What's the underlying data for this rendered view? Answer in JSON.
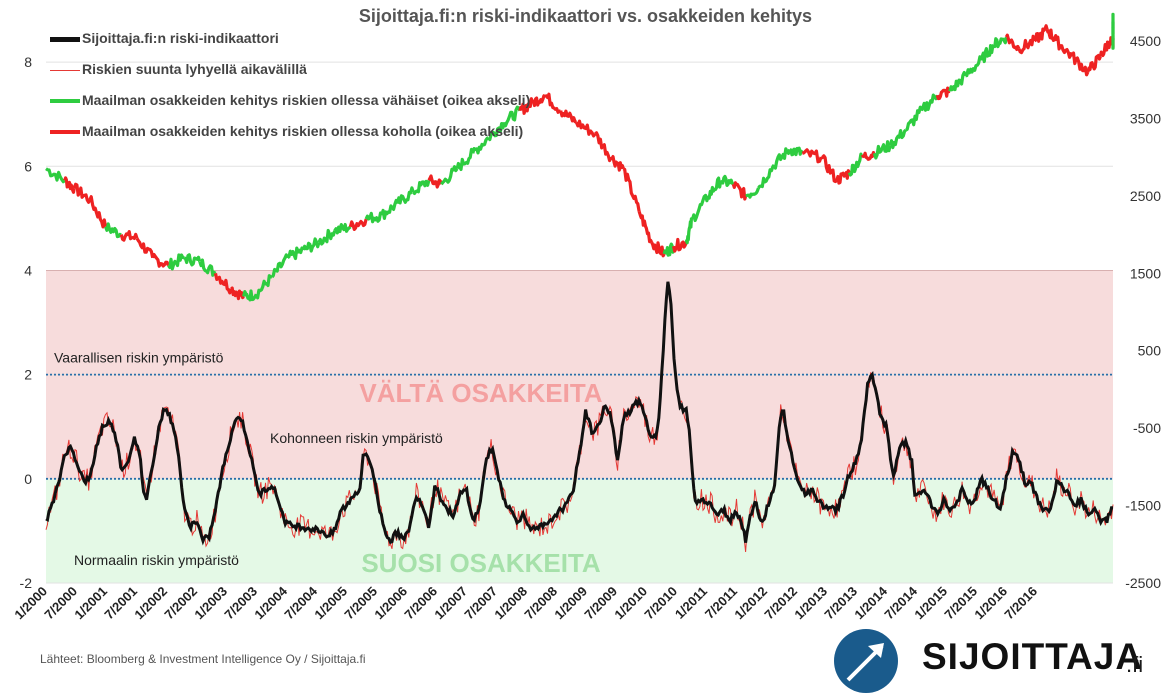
{
  "chart_data": {
    "type": "line",
    "title": "Sijoittaja.fi:n riski-indikaattori vs. osakkeiden kehitys",
    "left_axis": {
      "range": [
        -2,
        9
      ],
      "ticks": [
        -2,
        0,
        2,
        4,
        6,
        8
      ]
    },
    "right_axis": {
      "range": [
        -2500,
        4900
      ],
      "ticks": [
        -2500,
        -1500,
        -500,
        500,
        1500,
        2500,
        3500,
        4500
      ]
    },
    "x_range": [
      2000.0,
      2017.0
    ],
    "x_ticks": [
      "1/2000",
      "7/2000",
      "1/2001",
      "7/2001",
      "1/2002",
      "7/2002",
      "1/2003",
      "7/2003",
      "1/2004",
      "7/2004",
      "1/2005",
      "7/2005",
      "1/2006",
      "7/2006",
      "1/2007",
      "7/2007",
      "1/2008",
      "7/2008",
      "1/2009",
      "7/2009",
      "1/2010",
      "7/2010",
      "1/2011",
      "7/2011",
      "1/2012",
      "7/2012",
      "1/2013",
      "7/2013",
      "1/2014",
      "7/2014",
      "1/2015",
      "7/2015",
      "1/2016",
      "7/2016"
    ],
    "zones": [
      {
        "label": "VÄLTÄ OSAKKEITA",
        "from": 0,
        "to": 4,
        "color": "#f7dcdc",
        "text_color": "#f4a0a0"
      },
      {
        "label": "SUOSI OSAKKEITA",
        "from": -2,
        "to": 0,
        "color": "#e4f9e6",
        "text_color": "#a6e1aa"
      }
    ],
    "reference_lines": [
      {
        "y": 2,
        "label": "Vaarallisen riskin ympäristö"
      },
      {
        "y": 0,
        "label": "Kohonneen riskin ympäristö"
      }
    ],
    "zone_annotations": [
      "Normaalin riskin ympäristö"
    ],
    "series": [
      {
        "name": "Sijoittaja.fi:n riski-indikaattori",
        "axis": "left",
        "color": "#111111",
        "points": [
          [
            2000.0,
            -0.8
          ],
          [
            2000.1,
            -0.5
          ],
          [
            2000.2,
            -0.1
          ],
          [
            2000.3,
            0.5
          ],
          [
            2000.4,
            0.6
          ],
          [
            2000.5,
            0.3
          ],
          [
            2000.6,
            -0.05
          ],
          [
            2000.7,
            0.0
          ],
          [
            2000.8,
            0.6
          ],
          [
            2000.9,
            1.0
          ],
          [
            2001.0,
            1.1
          ],
          [
            2001.1,
            0.9
          ],
          [
            2001.2,
            0.2
          ],
          [
            2001.3,
            0.3
          ],
          [
            2001.4,
            0.8
          ],
          [
            2001.5,
            0.4
          ],
          [
            2001.55,
            -0.2
          ],
          [
            2001.6,
            -0.4
          ],
          [
            2001.7,
            0.3
          ],
          [
            2001.8,
            1.0
          ],
          [
            2001.9,
            1.4
          ],
          [
            2002.0,
            1.1
          ],
          [
            2002.1,
            0.6
          ],
          [
            2002.15,
            0.0
          ],
          [
            2002.2,
            -0.6
          ],
          [
            2002.3,
            -0.9
          ],
          [
            2002.4,
            -0.8
          ],
          [
            2002.5,
            -1.2
          ],
          [
            2002.6,
            -1.1
          ],
          [
            2002.7,
            -0.6
          ],
          [
            2002.8,
            0.1
          ],
          [
            2002.9,
            0.6
          ],
          [
            2003.0,
            1.1
          ],
          [
            2003.1,
            1.2
          ],
          [
            2003.2,
            0.8
          ],
          [
            2003.3,
            0.2
          ],
          [
            2003.4,
            -0.3
          ],
          [
            2003.5,
            -0.2
          ],
          [
            2003.6,
            -0.1
          ],
          [
            2003.7,
            -0.4
          ],
          [
            2003.8,
            -0.8
          ],
          [
            2003.9,
            -0.9
          ],
          [
            2004.0,
            -0.9
          ],
          [
            2004.2,
            -0.95
          ],
          [
            2004.4,
            -1.0
          ],
          [
            2004.5,
            -1.1
          ],
          [
            2004.6,
            -1.0
          ],
          [
            2004.7,
            -0.6
          ],
          [
            2004.8,
            -0.5
          ],
          [
            2004.9,
            -0.3
          ],
          [
            2005.0,
            -0.2
          ],
          [
            2005.05,
            0.4
          ],
          [
            2005.1,
            0.5
          ],
          [
            2005.2,
            0.2
          ],
          [
            2005.3,
            -0.5
          ],
          [
            2005.4,
            -1.0
          ],
          [
            2005.5,
            -1.2
          ],
          [
            2005.6,
            -1.0
          ],
          [
            2005.7,
            -1.2
          ],
          [
            2005.8,
            -0.9
          ],
          [
            2005.9,
            -0.3
          ],
          [
            2006.0,
            -0.5
          ],
          [
            2006.1,
            -0.9
          ],
          [
            2006.2,
            -0.1
          ],
          [
            2006.3,
            -0.4
          ],
          [
            2006.4,
            -0.6
          ],
          [
            2006.5,
            -0.7
          ],
          [
            2006.6,
            -0.3
          ],
          [
            2006.7,
            -0.2
          ],
          [
            2006.8,
            -0.8
          ],
          [
            2006.9,
            -0.6
          ],
          [
            2007.0,
            0.3
          ],
          [
            2007.1,
            0.6
          ],
          [
            2007.2,
            0.1
          ],
          [
            2007.3,
            -0.4
          ],
          [
            2007.4,
            -0.6
          ],
          [
            2007.5,
            -0.8
          ],
          [
            2007.6,
            -0.7
          ],
          [
            2007.7,
            -0.9
          ],
          [
            2007.8,
            -1.0
          ],
          [
            2007.9,
            -0.9
          ],
          [
            2008.0,
            -0.9
          ],
          [
            2008.1,
            -0.7
          ],
          [
            2008.2,
            -0.6
          ],
          [
            2008.3,
            -0.5
          ],
          [
            2008.4,
            -0.2
          ],
          [
            2008.5,
            0.5
          ],
          [
            2008.6,
            1.3
          ],
          [
            2008.7,
            0.9
          ],
          [
            2008.8,
            1.0
          ],
          [
            2008.9,
            1.4
          ],
          [
            2009.0,
            1.2
          ],
          [
            2009.05,
            0.8
          ],
          [
            2009.1,
            0.3
          ],
          [
            2009.2,
            1.2
          ],
          [
            2009.3,
            1.3
          ],
          [
            2009.4,
            1.5
          ],
          [
            2009.5,
            1.4
          ],
          [
            2009.6,
            0.9
          ],
          [
            2009.7,
            0.8
          ],
          [
            2009.75,
            1.0
          ],
          [
            2009.8,
            1.8
          ],
          [
            2009.85,
            2.8
          ],
          [
            2009.9,
            3.8
          ],
          [
            2009.95,
            3.5
          ],
          [
            2010.0,
            2.4
          ],
          [
            2010.05,
            1.7
          ],
          [
            2010.1,
            1.4
          ],
          [
            2010.2,
            1.3
          ],
          [
            2010.25,
            0.9
          ],
          [
            2010.3,
            0.1
          ],
          [
            2010.35,
            -0.5
          ],
          [
            2010.4,
            -0.4
          ],
          [
            2010.5,
            -0.4
          ],
          [
            2010.6,
            -0.5
          ],
          [
            2010.7,
            -0.7
          ],
          [
            2010.8,
            -0.6
          ],
          [
            2010.9,
            -0.8
          ],
          [
            2011.0,
            -0.6
          ],
          [
            2011.1,
            -0.9
          ],
          [
            2011.15,
            -1.2
          ],
          [
            2011.2,
            -0.8
          ],
          [
            2011.3,
            -0.4
          ],
          [
            2011.4,
            -0.9
          ],
          [
            2011.5,
            -0.5
          ],
          [
            2011.6,
            -0.2
          ],
          [
            2011.65,
            0.5
          ],
          [
            2011.7,
            1.2
          ],
          [
            2011.75,
            1.3
          ],
          [
            2011.8,
            0.9
          ],
          [
            2011.9,
            0.3
          ],
          [
            2012.0,
            -0.1
          ],
          [
            2012.1,
            -0.3
          ],
          [
            2012.2,
            -0.2
          ],
          [
            2012.3,
            -0.4
          ],
          [
            2012.4,
            -0.6
          ],
          [
            2012.5,
            -0.5
          ],
          [
            2012.6,
            -0.6
          ],
          [
            2012.7,
            -0.3
          ],
          [
            2012.8,
            0.1
          ],
          [
            2012.9,
            0.3
          ],
          [
            2013.0,
            0.8
          ],
          [
            2013.05,
            1.4
          ],
          [
            2013.1,
            1.9
          ],
          [
            2013.15,
            2.0
          ],
          [
            2013.2,
            1.8
          ],
          [
            2013.3,
            1.2
          ],
          [
            2013.4,
            1.0
          ],
          [
            2013.45,
            0.4
          ],
          [
            2013.5,
            0.0
          ],
          [
            2013.6,
            0.6
          ],
          [
            2013.7,
            0.7
          ],
          [
            2013.8,
            0.3
          ],
          [
            2013.85,
            -0.4
          ],
          [
            2013.9,
            -0.3
          ],
          [
            2014.0,
            -0.2
          ],
          [
            2014.1,
            -0.5
          ],
          [
            2014.2,
            -0.7
          ],
          [
            2014.3,
            -0.4
          ],
          [
            2014.4,
            -0.6
          ],
          [
            2014.5,
            -0.5
          ],
          [
            2014.6,
            -0.2
          ],
          [
            2014.7,
            -0.5
          ],
          [
            2014.8,
            -0.4
          ],
          [
            2014.9,
            0.0
          ],
          [
            2015.0,
            -0.2
          ],
          [
            2015.1,
            -0.4
          ],
          [
            2015.2,
            -0.6
          ],
          [
            2015.3,
            0.0
          ],
          [
            2015.4,
            0.5
          ],
          [
            2015.5,
            0.4
          ],
          [
            2015.6,
            -0.1
          ],
          [
            2015.7,
            -0.1
          ],
          [
            2015.8,
            -0.4
          ],
          [
            2015.9,
            -0.6
          ],
          [
            2016.0,
            -0.6
          ],
          [
            2016.05,
            -0.4
          ],
          [
            2016.1,
            0.0
          ],
          [
            2016.2,
            -0.2
          ],
          [
            2016.3,
            -0.3
          ],
          [
            2016.4,
            -0.5
          ],
          [
            2016.5,
            -0.4
          ],
          [
            2016.6,
            -0.7
          ],
          [
            2016.7,
            -0.6
          ],
          [
            2016.8,
            -0.8
          ],
          [
            2016.9,
            -0.8
          ],
          [
            2017.0,
            -0.5
          ]
        ]
      },
      {
        "name": "Riskien suunta lyhyellä aikavälillä",
        "axis": "left",
        "color": "#e53935",
        "derived_from_indicator": true
      },
      {
        "name": "Maailman osakkeiden kehitys riskien ollessa vähäiset (oikea akseli)",
        "axis": "right",
        "color": "#2ecc40"
      },
      {
        "name": "Maailman osakkeiden kehitys riskien ollessa koholla (oikea akseli)",
        "axis": "right",
        "color": "#ee2222"
      }
    ],
    "equity_index": {
      "axis": "right",
      "points": [
        [
          2000.0,
          2850,
          "g"
        ],
        [
          2000.3,
          2700,
          "g"
        ],
        [
          2000.45,
          2600,
          "r"
        ],
        [
          2000.7,
          2450,
          "r"
        ],
        [
          2000.95,
          2100,
          "r"
        ],
        [
          2001.2,
          2000,
          "g"
        ],
        [
          2001.45,
          1950,
          "r"
        ],
        [
          2001.7,
          1700,
          "r"
        ],
        [
          2001.95,
          1600,
          "r"
        ],
        [
          2002.2,
          1700,
          "g"
        ],
        [
          2002.45,
          1650,
          "g"
        ],
        [
          2002.7,
          1500,
          "g"
        ],
        [
          2002.95,
          1300,
          "r"
        ],
        [
          2003.15,
          1200,
          "r"
        ],
        [
          2003.35,
          1230,
          "g"
        ],
        [
          2003.6,
          1450,
          "g"
        ],
        [
          2003.85,
          1700,
          "g"
        ],
        [
          2004.1,
          1800,
          "g"
        ],
        [
          2004.35,
          1900,
          "g"
        ],
        [
          2004.6,
          2050,
          "g"
        ],
        [
          2004.85,
          2100,
          "g"
        ],
        [
          2005.1,
          2200,
          "r"
        ],
        [
          2005.35,
          2250,
          "g"
        ],
        [
          2005.6,
          2400,
          "g"
        ],
        [
          2005.85,
          2550,
          "g"
        ],
        [
          2006.1,
          2700,
          "g"
        ],
        [
          2006.3,
          2650,
          "r"
        ],
        [
          2006.55,
          2850,
          "g"
        ],
        [
          2006.8,
          3050,
          "g"
        ],
        [
          2007.05,
          3250,
          "g"
        ],
        [
          2007.3,
          3450,
          "g"
        ],
        [
          2007.55,
          3600,
          "g"
        ],
        [
          2007.75,
          3700,
          "r"
        ],
        [
          2007.95,
          3800,
          "r"
        ],
        [
          2008.2,
          3600,
          "r"
        ],
        [
          2008.45,
          3450,
          "r"
        ],
        [
          2008.75,
          3300,
          "r"
        ],
        [
          2009.0,
          3000,
          "r"
        ],
        [
          2009.2,
          2850,
          "r"
        ],
        [
          2009.45,
          2300,
          "r"
        ],
        [
          2009.65,
          1900,
          "r"
        ],
        [
          2009.85,
          1750,
          "r"
        ],
        [
          2010.0,
          1850,
          "g"
        ],
        [
          2010.2,
          1900,
          "r"
        ],
        [
          2010.3,
          2200,
          "g"
        ],
        [
          2010.55,
          2500,
          "g"
        ],
        [
          2010.75,
          2700,
          "g"
        ],
        [
          2010.95,
          2650,
          "g"
        ],
        [
          2011.15,
          2500,
          "r"
        ],
        [
          2011.35,
          2600,
          "g"
        ],
        [
          2011.6,
          2900,
          "g"
        ],
        [
          2011.85,
          3100,
          "g"
        ],
        [
          2012.05,
          3050,
          "g"
        ],
        [
          2012.35,
          3000,
          "r"
        ],
        [
          2012.6,
          2700,
          "r"
        ],
        [
          2012.8,
          2800,
          "r"
        ],
        [
          2013.0,
          3000,
          "g"
        ],
        [
          2013.2,
          3050,
          "r"
        ],
        [
          2013.45,
          3150,
          "g"
        ],
        [
          2013.7,
          3350,
          "g"
        ],
        [
          2013.95,
          3600,
          "g"
        ],
        [
          2014.2,
          3800,
          "g"
        ],
        [
          2014.4,
          3850,
          "r"
        ],
        [
          2014.65,
          4050,
          "g"
        ],
        [
          2014.9,
          4250,
          "g"
        ],
        [
          2015.1,
          4450,
          "g"
        ],
        [
          2015.3,
          4550,
          "g"
        ],
        [
          2015.5,
          4400,
          "r"
        ],
        [
          2015.75,
          4500,
          "r"
        ],
        [
          2015.95,
          4650,
          "r"
        ],
        [
          2016.1,
          4500,
          "r"
        ],
        [
          2016.35,
          4300,
          "r"
        ],
        [
          2016.6,
          4100,
          "r"
        ],
        [
          2016.8,
          4300,
          "r"
        ],
        [
          2016.95,
          4500,
          "r"
        ],
        [
          2017.05,
          4450,
          "r"
        ],
        [
          2017.25,
          4550,
          "g"
        ],
        [
          2017.4,
          4650,
          "g"
        ],
        [
          2017.55,
          4700,
          "g"
        ],
        [
          2017.7,
          4800,
          "g"
        ]
      ]
    }
  },
  "footer": {
    "source": "Lähteet: Bloomberg & Investment Intelligence Oy / Sijoittaja.fi",
    "brand_name": "SIJOITTAJA",
    "brand_tld": ".fi"
  },
  "colors": {
    "avoid_zone": "#f7dcdc",
    "favor_zone": "#e4f9e6",
    "reference_line": "#2a6ea8",
    "logo": "#1a5b8c"
  }
}
